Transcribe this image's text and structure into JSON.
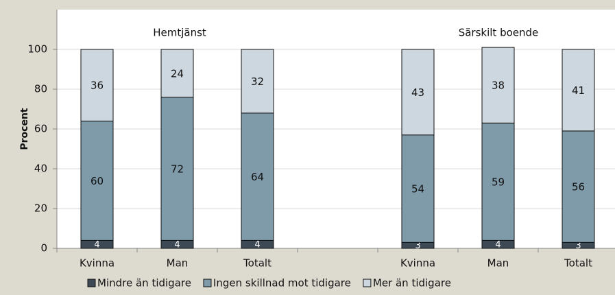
{
  "chart_data": {
    "type": "stacked_bar",
    "categories": [
      "Kvinna",
      "Man",
      "Totalt",
      null,
      "Kvinna",
      "Man",
      "Totalt"
    ],
    "series": [
      {
        "name": "Mindre än tidigare",
        "color": "#3d4a55",
        "values": [
          4,
          4,
          4,
          null,
          3,
          4,
          3
        ]
      },
      {
        "name": "Ingen skillnad mot tidigare",
        "color": "#7f9aa9",
        "values": [
          60,
          72,
          64,
          null,
          54,
          59,
          56
        ]
      },
      {
        "name": "Mer än tidigare",
        "color": "#cdd7df",
        "values": [
          36,
          24,
          32,
          null,
          43,
          38,
          41
        ]
      }
    ],
    "annotations": [
      "Hemtjänst",
      "Särskilt boende"
    ],
    "ylabel": "Procent",
    "ylim": [
      0,
      120
    ],
    "yticks": [
      0,
      20,
      40,
      60,
      80,
      100
    ],
    "grid": true
  }
}
